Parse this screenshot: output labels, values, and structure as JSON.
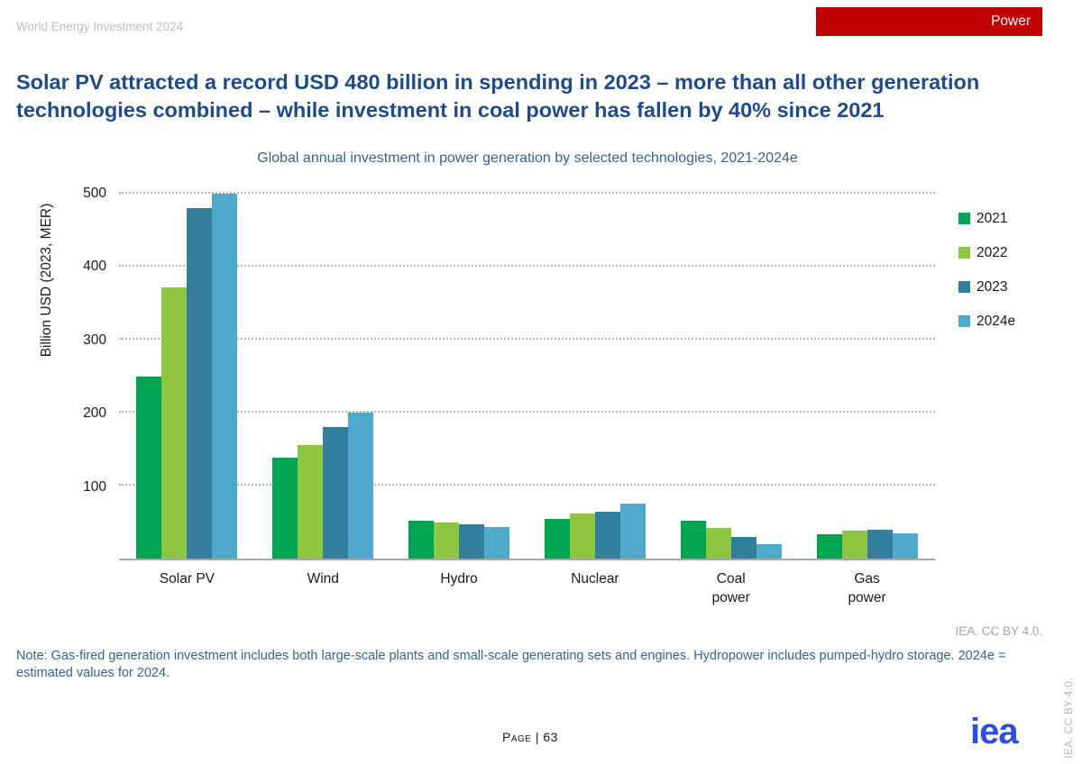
{
  "header": {
    "report_title": "World Energy Investment 2024",
    "badge_label": "Power",
    "badge_color": "#c00000"
  },
  "headline": "Solar PV attracted a record USD 480 billion in spending in 2023 – more than all other generation technologies combined – while investment in coal power has fallen by 40% since 2021",
  "chart_data": {
    "type": "bar",
    "title": "Global annual investment in power generation by selected technologies, 2021-2024e",
    "xlabel": "",
    "ylabel": "Billion USD (2023, MER)",
    "ylim": [
      0,
      500
    ],
    "yticks": [
      100,
      200,
      300,
      400,
      500
    ],
    "grid": "horizontal-dotted",
    "legend_position": "right",
    "categories": [
      "Solar PV",
      "Wind",
      "Hydro",
      "Nuclear",
      "Coal power",
      "Gas power"
    ],
    "category_labels": [
      [
        "Solar PV"
      ],
      [
        "Wind"
      ],
      [
        "Hydro"
      ],
      [
        "Nuclear"
      ],
      [
        "Coal",
        "power"
      ],
      [
        "Gas",
        "power"
      ]
    ],
    "series": [
      {
        "name": "2021",
        "color": "#00a551",
        "values": [
          250,
          138,
          52,
          54,
          52,
          33
        ]
      },
      {
        "name": "2022",
        "color": "#8ec641",
        "values": [
          372,
          155,
          50,
          62,
          42,
          38
        ]
      },
      {
        "name": "2023",
        "color": "#317f9c",
        "values": [
          480,
          180,
          47,
          64,
          30,
          39
        ]
      },
      {
        "name": "2024e",
        "color": "#4fa9cb",
        "values": [
          500,
          200,
          43,
          75,
          20,
          35
        ]
      }
    ]
  },
  "footer": {
    "license": "IEA. CC BY 4.0.",
    "note": "Note: Gas-fired generation investment includes both large-scale plants and small-scale generating sets and engines. Hydropower includes pumped-hydro storage. 2024e = estimated values for 2024.",
    "page_label": "Page | 63",
    "logo_text": "iea",
    "vertical_license": "IEA. CC BY 4.0."
  }
}
